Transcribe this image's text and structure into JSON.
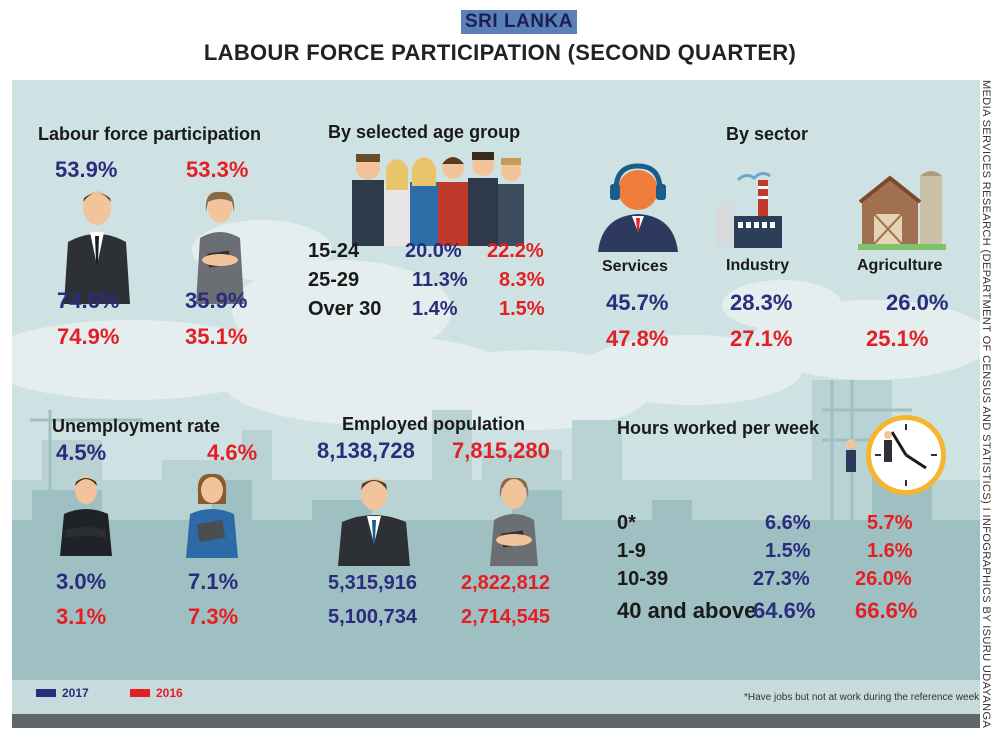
{
  "header": {
    "country": "SRI LANKA",
    "title": "LABOUR FORCE PARTICIPATION (SECOND QUARTER)"
  },
  "credit": "MEDIA SERVICES RESEARCH (DEPARTMENT OF CENSUS AND STATISTICS) I INFOGRAPHICS BY ISURU UDAYANGA",
  "colors": {
    "y2017": "#2a2c7c",
    "y2016": "#e31e24",
    "background": "#cfe2e3"
  },
  "participation": {
    "heading": "Labour force participation",
    "male_2017": "53.9%",
    "female_2016": "53.3%",
    "row1": [
      "74.6%",
      "35.9%"
    ],
    "row2": [
      "74.9%",
      "35.1%"
    ]
  },
  "age_group": {
    "heading": "By selected age group",
    "rows": [
      {
        "label": "15-24",
        "v2017": "20.0%",
        "v2016": "22.2%"
      },
      {
        "label": "25-29",
        "v2017": "11.3%",
        "v2016": "8.3%"
      },
      {
        "label": "Over 30",
        "v2017": "1.4%",
        "v2016": "1.5%"
      }
    ]
  },
  "sector": {
    "heading": "By sector",
    "items": [
      {
        "label": "Services",
        "v2017": "45.7%",
        "v2016": "47.8%"
      },
      {
        "label": "Industry",
        "v2017": "28.3%",
        "v2016": "27.1%"
      },
      {
        "label": "Agriculture",
        "v2017": "26.0%",
        "v2016": "25.1%"
      }
    ]
  },
  "unemployment": {
    "heading": "Unemployment rate",
    "v2017": "4.5%",
    "v2016": "4.6%",
    "row1": [
      "3.0%",
      "7.1%"
    ],
    "row2": [
      "3.1%",
      "7.3%"
    ]
  },
  "employed": {
    "heading": "Employed population",
    "v2017": "8,138,728",
    "v2016": "7,815,280",
    "row1": [
      "5,315,916",
      "2,822,812"
    ],
    "row2": [
      "5,100,734",
      "2,714,545"
    ]
  },
  "hours": {
    "heading": "Hours worked per week",
    "rows": [
      {
        "label": "0*",
        "v2017": "6.6%",
        "v2016": "5.7%"
      },
      {
        "label": "1-9",
        "v2017": "1.5%",
        "v2016": "1.6%"
      },
      {
        "label": "10-39",
        "v2017": "27.3%",
        "v2016": "26.0%"
      },
      {
        "label": "40 and above",
        "v2017": "64.6%",
        "v2016": "66.6%"
      }
    ]
  },
  "legend": {
    "y2017": "2017",
    "y2016": "2016"
  },
  "footnote": "*Have jobs but not at work during the reference week"
}
